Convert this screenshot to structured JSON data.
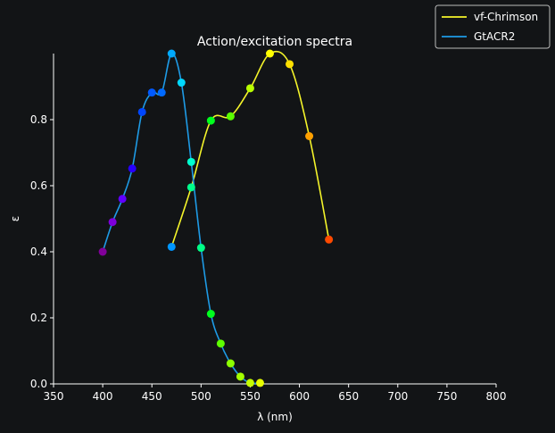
{
  "chart_data": {
    "type": "line",
    "title": "Action/excitation spectra",
    "xlabel": "λ (nm)",
    "ylabel": "ε",
    "xlim": [
      350,
      800
    ],
    "ylim": [
      0,
      1.0
    ],
    "xticks": [
      350,
      400,
      450,
      500,
      550,
      600,
      650,
      700,
      750,
      800
    ],
    "yticks": [
      0.0,
      0.2,
      0.4,
      0.6,
      0.8
    ],
    "ytick_labels": [
      "0.0",
      "0.2",
      "0.4",
      "0.6",
      "0.8"
    ],
    "legend_position": "top-right",
    "grid": false,
    "series": [
      {
        "name": "vf-Chrimson",
        "line_color": "#f5f52a",
        "x": [
          470,
          490,
          510,
          530,
          550,
          570,
          590,
          610,
          630
        ],
        "y": [
          0.415,
          0.595,
          0.797,
          0.81,
          0.895,
          1.0,
          0.968,
          0.75,
          0.437
        ],
        "marker_colors": [
          "#0096ff",
          "#00ff8c",
          "#00ff1e",
          "#5aff00",
          "#b9ff00",
          "#ffff00",
          "#ffdf00",
          "#ffa000",
          "#ff4a00"
        ]
      },
      {
        "name": "GtACR2",
        "line_color": "#1e9be6",
        "x": [
          400,
          410,
          420,
          430,
          440,
          450,
          460,
          470,
          480,
          490,
          500,
          510,
          520,
          530,
          540,
          550,
          560
        ],
        "y": [
          0.4,
          0.49,
          0.56,
          0.652,
          0.823,
          0.882,
          0.882,
          1.0,
          0.912,
          0.672,
          0.412,
          0.212,
          0.122,
          0.062,
          0.022,
          0.003,
          0.003
        ],
        "marker_colors": [
          "#81009a",
          "#7e00db",
          "#6100ff",
          "#2800ff",
          "#0046ff",
          "#0059ff",
          "#006aff",
          "#00aaff",
          "#00d8ff",
          "#00ffcf",
          "#00ff87",
          "#00ff1e",
          "#5eff00",
          "#8dff00",
          "#a3ff00",
          "#c6ff00",
          "#e8ff00"
        ]
      }
    ]
  }
}
